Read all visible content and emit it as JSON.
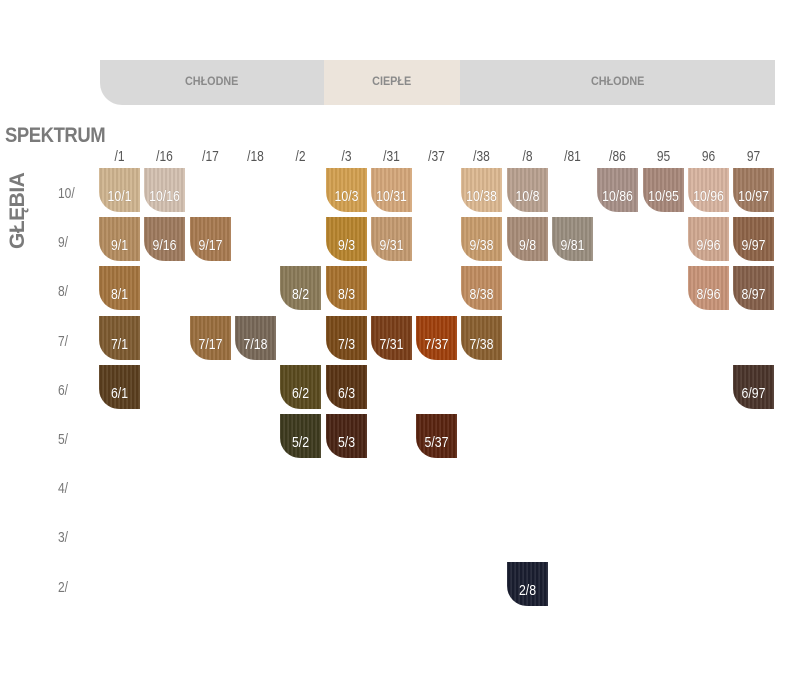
{
  "header": {
    "bands": [
      {
        "label": "CHŁODNE",
        "color": "#d9d9d9"
      },
      {
        "label": "CIEPŁE",
        "color": "#ece4db"
      },
      {
        "label": "CHŁODNE",
        "color": "#d9d9d9"
      }
    ]
  },
  "spectrum_title": "SPEKTRUM",
  "depth_title": "GŁĘBIA",
  "columns": [
    "/1",
    "/16",
    "/17",
    "/18",
    "/2",
    "/3",
    "/31",
    "/37",
    "/38",
    "/8",
    "/81",
    "/86",
    "95",
    "96",
    "97"
  ],
  "rows": [
    "10/",
    "9/",
    "8/",
    "7/",
    "6/",
    "5/",
    "4/",
    "3/",
    "2/"
  ],
  "swatches": [
    {
      "label": "10/1",
      "row": "10/",
      "col": "/1",
      "color": "#cfb48f"
    },
    {
      "label": "10/16",
      "row": "10/",
      "col": "/16",
      "color": "#d3c0b0"
    },
    {
      "label": "10/3",
      "row": "10/",
      "col": "/3",
      "color": "#d3a050"
    },
    {
      "label": "10/31",
      "row": "10/",
      "col": "/31",
      "color": "#d4a77a"
    },
    {
      "label": "10/38",
      "row": "10/",
      "col": "/38",
      "color": "#dcb891"
    },
    {
      "label": "10/8",
      "row": "10/",
      "col": "/8",
      "color": "#b8a08f"
    },
    {
      "label": "10/86",
      "row": "10/",
      "col": "/86",
      "color": "#a89088"
    },
    {
      "label": "10/95",
      "row": "10/",
      "col": "95",
      "color": "#a8887a"
    },
    {
      "label": "10/96",
      "row": "10/",
      "col": "96",
      "color": "#d8b4a0"
    },
    {
      "label": "10/97",
      "row": "10/",
      "col": "97",
      "color": "#a07a60"
    },
    {
      "label": "9/1",
      "row": "9/",
      "col": "/1",
      "color": "#b48c5f"
    },
    {
      "label": "9/16",
      "row": "9/",
      "col": "/16",
      "color": "#9e7a5e"
    },
    {
      "label": "9/17",
      "row": "9/",
      "col": "/17",
      "color": "#a87a50"
    },
    {
      "label": "9/3",
      "row": "9/",
      "col": "/3",
      "color": "#b8852e"
    },
    {
      "label": "9/31",
      "row": "9/",
      "col": "/31",
      "color": "#c49a70"
    },
    {
      "label": "9/38",
      "row": "9/",
      "col": "/38",
      "color": "#c89c6c"
    },
    {
      "label": "9/8",
      "row": "9/",
      "col": "/8",
      "color": "#a88c78"
    },
    {
      "label": "9/81",
      "row": "9/",
      "col": "/81",
      "color": "#9a8e80"
    },
    {
      "label": "9/96",
      "row": "9/",
      "col": "96",
      "color": "#d0a890"
    },
    {
      "label": "9/97",
      "row": "9/",
      "col": "97",
      "color": "#8e6448"
    },
    {
      "label": "8/1",
      "row": "8/",
      "col": "/1",
      "color": "#a4743e"
    },
    {
      "label": "8/2",
      "row": "8/",
      "col": "/2",
      "color": "#8a7a58"
    },
    {
      "label": "8/3",
      "row": "8/",
      "col": "/3",
      "color": "#a8722e"
    },
    {
      "label": "8/38",
      "row": "8/",
      "col": "/38",
      "color": "#c08c60"
    },
    {
      "label": "8/96",
      "row": "8/",
      "col": "96",
      "color": "#c89478"
    },
    {
      "label": "8/97",
      "row": "8/",
      "col": "97",
      "color": "#85604a"
    },
    {
      "label": "7/1",
      "row": "7/",
      "col": "/1",
      "color": "#7d5a30"
    },
    {
      "label": "7/17",
      "row": "7/",
      "col": "/17",
      "color": "#9a6e3e"
    },
    {
      "label": "7/18",
      "row": "7/",
      "col": "/18",
      "color": "#786858"
    },
    {
      "label": "7/3",
      "row": "7/",
      "col": "/3",
      "color": "#7a4a18"
    },
    {
      "label": "7/31",
      "row": "7/",
      "col": "/31",
      "color": "#7a3e18"
    },
    {
      "label": "7/37",
      "row": "7/",
      "col": "/37",
      "color": "#a0400c"
    },
    {
      "label": "7/38",
      "row": "7/",
      "col": "/38",
      "color": "#8a6030"
    },
    {
      "label": "6/1",
      "row": "6/",
      "col": "/1",
      "color": "#5a3e1e"
    },
    {
      "label": "6/2",
      "row": "6/",
      "col": "/2",
      "color": "#5a4a1e"
    },
    {
      "label": "6/3",
      "row": "6/",
      "col": "/3",
      "color": "#5a3414"
    },
    {
      "label": "6/97",
      "row": "6/",
      "col": "97",
      "color": "#4a342a"
    },
    {
      "label": "5/2",
      "row": "5/",
      "col": "/2",
      "color": "#3e3a1e"
    },
    {
      "label": "5/3",
      "row": "5/",
      "col": "/3",
      "color": "#4a2414"
    },
    {
      "label": "5/37",
      "row": "5/",
      "col": "/37",
      "color": "#5a2410"
    },
    {
      "label": "2/8",
      "row": "2/",
      "col": "/8",
      "color": "#1a1e30"
    }
  ]
}
